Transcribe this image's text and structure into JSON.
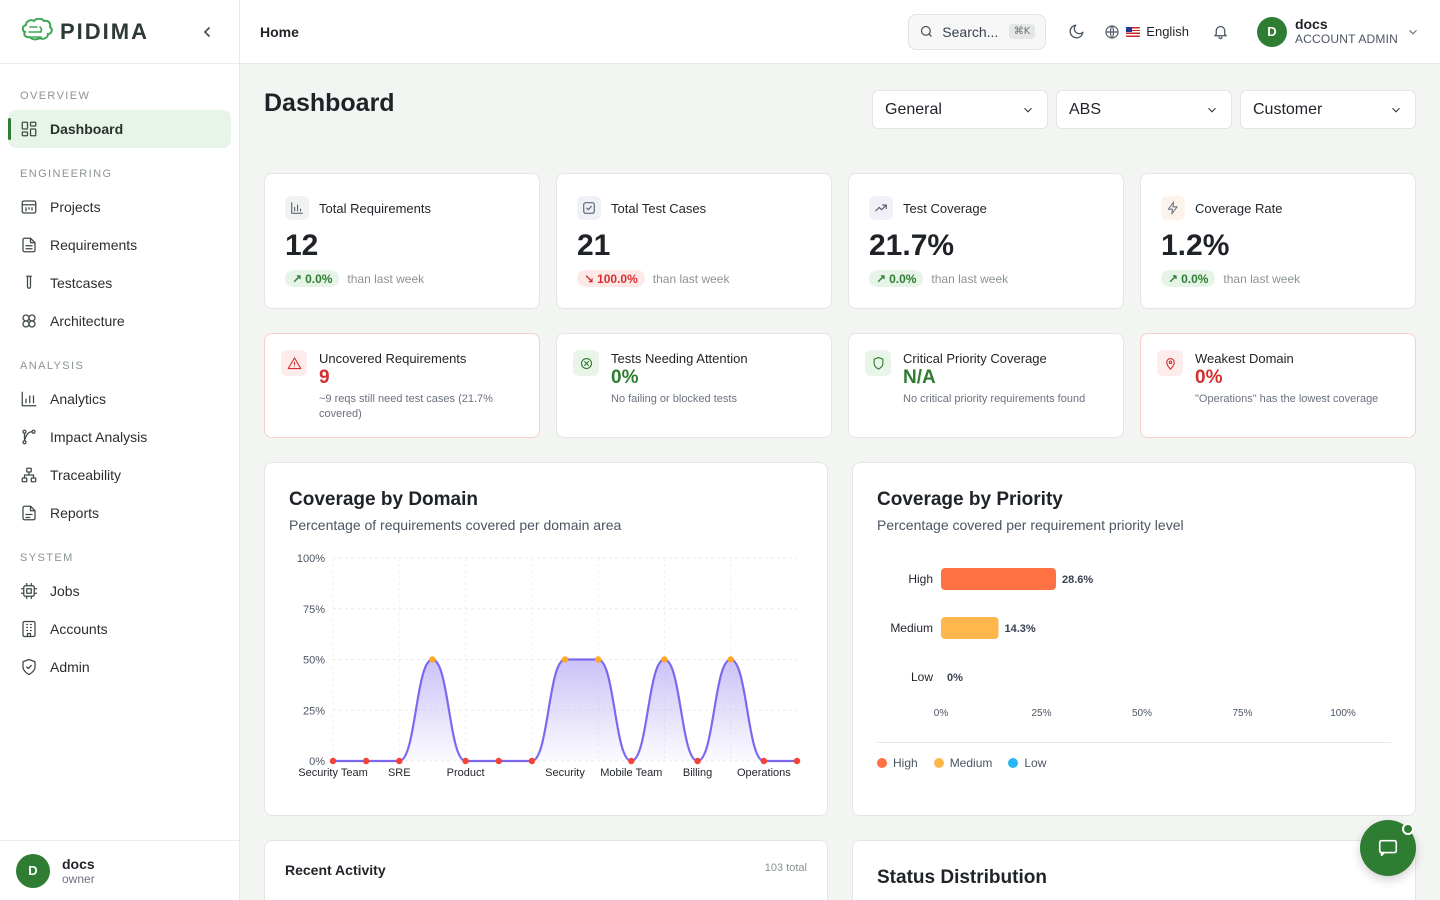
{
  "brand": {
    "name": "PIDIMA"
  },
  "sidebar": {
    "sections": [
      {
        "label": "OVERVIEW",
        "items": [
          {
            "label": "Dashboard",
            "icon": "dashboard-icon",
            "active": true
          }
        ]
      },
      {
        "label": "ENGINEERING",
        "items": [
          {
            "label": "Projects",
            "icon": "projects-icon"
          },
          {
            "label": "Requirements",
            "icon": "requirements-icon"
          },
          {
            "label": "Testcases",
            "icon": "testcases-icon"
          },
          {
            "label": "Architecture",
            "icon": "architecture-icon"
          }
        ]
      },
      {
        "label": "ANALYSIS",
        "items": [
          {
            "label": "Analytics",
            "icon": "analytics-icon"
          },
          {
            "label": "Impact Analysis",
            "icon": "impact-icon"
          },
          {
            "label": "Traceability",
            "icon": "traceability-icon"
          },
          {
            "label": "Reports",
            "icon": "reports-icon"
          }
        ]
      },
      {
        "label": "SYSTEM",
        "items": [
          {
            "label": "Jobs",
            "icon": "jobs-icon"
          },
          {
            "label": "Accounts",
            "icon": "accounts-icon"
          },
          {
            "label": "Admin",
            "icon": "admin-icon"
          }
        ]
      }
    ],
    "footer": {
      "avatar": "D",
      "name": "docs",
      "role": "owner"
    }
  },
  "topbar": {
    "breadcrumb": "Home",
    "search_placeholder": "Search...",
    "search_shortcut": "⌘K",
    "language": "English",
    "user": {
      "avatar": "D",
      "name": "docs",
      "role": "ACCOUNT ADMIN"
    }
  },
  "page": {
    "title": "Dashboard",
    "filters": [
      "General",
      "ABS",
      "Customer"
    ]
  },
  "stats": [
    {
      "title": "Total Requirements",
      "value": "12",
      "trend": "0.0%",
      "direction": "up",
      "trend_label": "than last week",
      "icon": "bar-chart-icon"
    },
    {
      "title": "Total Test Cases",
      "value": "21",
      "trend": "100.0%",
      "direction": "down",
      "trend_label": "than last week",
      "icon": "checkbox-icon"
    },
    {
      "title": "Test Coverage",
      "value": "21.7%",
      "trend": "0.0%",
      "direction": "up",
      "trend_label": "than last week",
      "icon": "trending-up-icon"
    },
    {
      "title": "Coverage Rate",
      "value": "1.2%",
      "trend": "0.0%",
      "direction": "up",
      "trend_label": "than last week",
      "icon": "lightning-icon"
    }
  ],
  "alerts": [
    {
      "title": "Uncovered Requirements",
      "value": "9",
      "sub": "~9 reqs still need test cases (21.7% covered)",
      "color": "#d32f2f",
      "icon": "warning-icon"
    },
    {
      "title": "Tests Needing Attention",
      "value": "0%",
      "sub": "No failing or blocked tests",
      "color": "#2e7d32",
      "icon": "x-circle-icon"
    },
    {
      "title": "Critical Priority Coverage",
      "value": "N/A",
      "sub": "No critical priority requirements found",
      "color": "#2e7d32",
      "icon": "shield-icon"
    },
    {
      "title": "Weakest Domain",
      "value": "0%",
      "sub": "\"Operations\" has the lowest coverage",
      "color": "#d32f2f",
      "icon": "map-pin-icon"
    }
  ],
  "domain_panel": {
    "title": "Coverage by Domain",
    "subtitle": "Percentage of requirements covered per domain area"
  },
  "priority_panel": {
    "title": "Coverage by Priority",
    "subtitle": "Percentage covered per requirement priority level"
  },
  "recent_activity": {
    "title": "Recent Activity",
    "count": "103 total"
  },
  "status_distribution": {
    "title": "Status Distribution"
  },
  "chart_data": [
    {
      "type": "area",
      "y_ticks": [
        "0%",
        "25%",
        "50%",
        "75%",
        "100%"
      ],
      "ylim": [
        0,
        100
      ],
      "x_labels": [
        "Security Team",
        "SRE",
        "Product",
        "Security",
        "Mobile Team",
        "Billing",
        "Operations"
      ],
      "points": [
        0,
        0,
        0,
        50,
        0,
        0,
        0,
        50,
        50,
        0,
        50,
        0,
        50,
        0,
        0
      ],
      "line_color": "#7b68ee",
      "fill_color": "#b9aef5"
    },
    {
      "type": "bar",
      "orientation": "horizontal",
      "categories": [
        "High",
        "Medium",
        "Low"
      ],
      "values": [
        28.6,
        14.3,
        0
      ],
      "value_labels": [
        "28.6%",
        "14.3%",
        "0%"
      ],
      "colors": [
        "#ff7043",
        "#ffb74d",
        "#29b6f6"
      ],
      "x_ticks": [
        "0%",
        "25%",
        "50%",
        "75%",
        "100%"
      ],
      "xlim": [
        0,
        100
      ],
      "legend": [
        "High",
        "Medium",
        "Low"
      ]
    }
  ]
}
